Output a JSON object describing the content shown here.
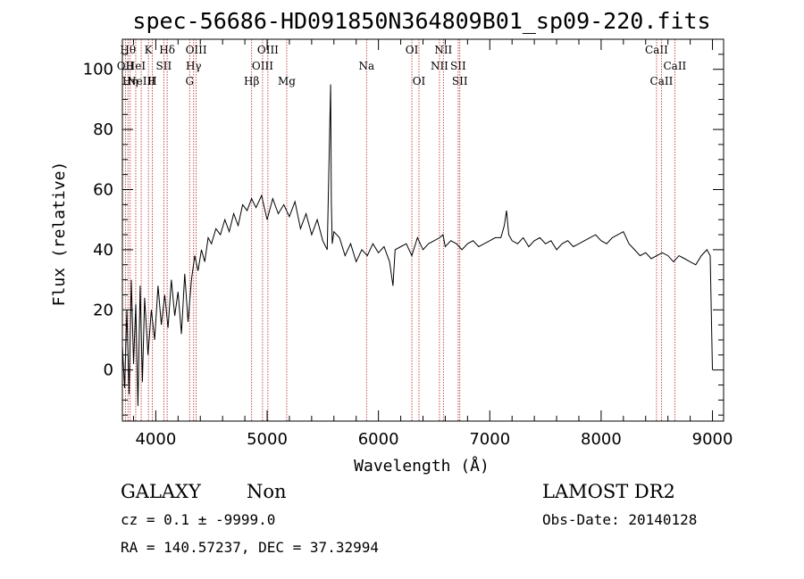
{
  "chart_data": {
    "type": "line",
    "title": "spec-56686-HD091850N364809B01_sp09-220.fits",
    "xlabel": "Wavelength (Å)",
    "ylabel": "Flux (relative)",
    "xlim": [
      3700,
      9100
    ],
    "ylim": [
      -17,
      110
    ],
    "xticks": [
      "4000",
      "5000",
      "6000",
      "7000",
      "8000",
      "9000"
    ],
    "yticks": [
      "0",
      "20",
      "40",
      "60",
      "80",
      "100"
    ],
    "series": [
      {
        "x": [
          3700,
          3720,
          3740,
          3760,
          3780,
          3800,
          3820,
          3840,
          3860,
          3880,
          3900,
          3930,
          3960,
          3990,
          4020,
          4050,
          4080,
          4110,
          4140,
          4170,
          4200,
          4230,
          4260,
          4290,
          4320,
          4350,
          4380,
          4410,
          4440,
          4470,
          4500,
          4540,
          4580,
          4620,
          4660,
          4700,
          4740,
          4780,
          4820,
          4860,
          4900,
          4950,
          5000,
          5050,
          5100,
          5150,
          5200,
          5250,
          5300,
          5350,
          5400,
          5450,
          5500,
          5540,
          5570,
          5577,
          5585,
          5600,
          5650,
          5700,
          5750,
          5800,
          5850,
          5900,
          5950,
          6000,
          6050,
          6100,
          6130,
          6150,
          6200,
          6250,
          6300,
          6350,
          6400,
          6450,
          6500,
          6550,
          6580,
          6600,
          6650,
          6700,
          6750,
          6800,
          6850,
          6900,
          6950,
          7000,
          7050,
          7100,
          7130,
          7150,
          7170,
          7200,
          7250,
          7300,
          7350,
          7400,
          7450,
          7500,
          7550,
          7600,
          7650,
          7700,
          7750,
          7800,
          7850,
          7900,
          7950,
          8000,
          8050,
          8100,
          8150,
          8200,
          8250,
          8300,
          8350,
          8400,
          8450,
          8500,
          8550,
          8600,
          8650,
          8700,
          8750,
          8800,
          8850,
          8900,
          8950,
          8980,
          9000
        ],
        "values": [
          8,
          -6,
          20,
          -8,
          30,
          2,
          22,
          -12,
          28,
          -4,
          24,
          5,
          20,
          10,
          28,
          15,
          25,
          14,
          30,
          18,
          26,
          12,
          32,
          16,
          30,
          38,
          33,
          40,
          36,
          44,
          42,
          47,
          45,
          50,
          46,
          52,
          48,
          55,
          53,
          57,
          54,
          58,
          50,
          57,
          52,
          55,
          51,
          56,
          47,
          52,
          45,
          50,
          43,
          40,
          95,
          56,
          42,
          46,
          44,
          38,
          42,
          36,
          40,
          38,
          42,
          39,
          41,
          36,
          28,
          40,
          41,
          42,
          38,
          44,
          40,
          42,
          43,
          44,
          45,
          41,
          43,
          42,
          40,
          42,
          43,
          41,
          42,
          43,
          44,
          44,
          48,
          53,
          45,
          43,
          42,
          44,
          41,
          43,
          44,
          42,
          43,
          40,
          42,
          43,
          41,
          42,
          43,
          44,
          45,
          43,
          42,
          44,
          45,
          46,
          42,
          40,
          38,
          39,
          37,
          38,
          39,
          38,
          36,
          38,
          37,
          36,
          35,
          38,
          40,
          38,
          0
        ]
      }
    ],
    "lines": [
      {
        "x": 3727,
        "label": "OII",
        "row": 1
      },
      {
        "x": 3750,
        "label": "Hθ",
        "row": 0
      },
      {
        "x": 3770,
        "label": "Hη",
        "row": 2
      },
      {
        "x": 3820,
        "label": "HeI",
        "row": 1
      },
      {
        "x": 3869,
        "label": "NeIII",
        "row": 2
      },
      {
        "x": 3934,
        "label": "K",
        "row": 0
      },
      {
        "x": 3969,
        "label": "H",
        "row": 2
      },
      {
        "x": 4072,
        "label": "SII",
        "row": 1
      },
      {
        "x": 4102,
        "label": "Hδ",
        "row": 0
      },
      {
        "x": 4304,
        "label": "G",
        "row": 2
      },
      {
        "x": 4340,
        "label": "Hγ",
        "row": 1
      },
      {
        "x": 4363,
        "label": "OIII",
        "row": 0
      },
      {
        "x": 4861,
        "label": "Hβ",
        "row": 2
      },
      {
        "x": 4959,
        "label": "OIII",
        "row": 1
      },
      {
        "x": 5007,
        "label": "OIII",
        "row": 0
      },
      {
        "x": 5176,
        "label": "Mg",
        "row": 2
      },
      {
        "x": 5893,
        "label": "Na",
        "row": 1
      },
      {
        "x": 6300,
        "label": "OI",
        "row": 0
      },
      {
        "x": 6364,
        "label": "OI",
        "row": 2
      },
      {
        "x": 6548,
        "label": "NII",
        "row": 1
      },
      {
        "x": 6583,
        "label": "NII",
        "row": 0
      },
      {
        "x": 6716,
        "label": "SII",
        "row": 1
      },
      {
        "x": 6731,
        "label": "SII",
        "row": 2
      },
      {
        "x": 8498,
        "label": "CaII",
        "row": 0
      },
      {
        "x": 8542,
        "label": "CaII",
        "row": 2
      },
      {
        "x": 8662,
        "label": "CaII",
        "row": 1
      }
    ],
    "grid": false
  },
  "info": {
    "object_class": "GALAXY",
    "subclass": "Non",
    "survey": "LAMOST DR2",
    "cz": "cz = 0.1 ± -9999.0",
    "obs_date": "Obs-Date: 20140128",
    "radec": "RA = 140.57237, DEC =  37.32994"
  },
  "colors": {
    "spectrum": "#000000",
    "lines": "#b22222",
    "axes": "#000000"
  }
}
